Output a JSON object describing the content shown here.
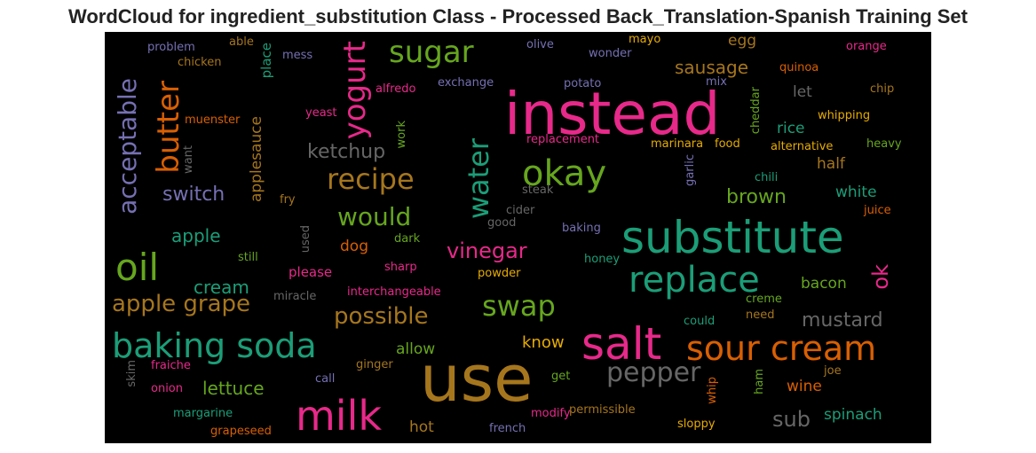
{
  "title": "WordCloud for ingredient_substitution Class - Processed Back_Translation-Spanish Training Set",
  "colors": {
    "teal": "#1b9e77",
    "orange": "#d95f02",
    "purple": "#7570b3",
    "magenta": "#e7298a",
    "green": "#66a61e",
    "yellow": "#e6ab02",
    "brown": "#a6761d",
    "gray": "#666666"
  },
  "words": {
    "instead": "instead",
    "use": "use",
    "substitute": "substitute",
    "salt": "salt",
    "milk": "milk",
    "baking_soda": "baking soda",
    "sour_cream": "sour cream",
    "replace": "replace",
    "oil": "oil",
    "okay": "okay",
    "sugar": "sugar",
    "butter": "butter",
    "yogurt": "yogurt",
    "recipe": "recipe",
    "water": "water",
    "acceptable": "acceptable",
    "would": "would",
    "swap": "swap",
    "apple_grape": "apple grape",
    "possible": "possible",
    "vinegar": "vinegar",
    "pepper": "pepper",
    "ketchup": "ketchup",
    "sausage": "sausage",
    "mustard": "mustard",
    "switch": "switch",
    "lettuce": "lettuce",
    "brown": "brown",
    "sub": "sub",
    "cream": "cream",
    "apple": "apple",
    "applesauce": "applesauce",
    "ok": "ok",
    "egg": "egg",
    "rice": "rice",
    "half": "half",
    "white": "white",
    "bacon": "bacon",
    "know": "know",
    "allow": "allow",
    "wine": "wine",
    "spinach": "spinach",
    "hot": "hot",
    "let": "let",
    "dog": "dog",
    "please": "please",
    "chili": "chili",
    "juice": "juice",
    "alternative": "alternative",
    "whipping": "whipping",
    "heavy": "heavy",
    "marinara": "marinara",
    "food": "food",
    "replacement": "replacement",
    "steak": "steak",
    "cider": "cider",
    "baking": "baking",
    "honey": "honey",
    "powder": "powder",
    "interchangeable": "interchangeable",
    "miracle": "miracle",
    "sharp": "sharp",
    "dark": "dark",
    "still": "still",
    "used": "used",
    "fry": "fry",
    "good": "good",
    "garlic": "garlic",
    "cheddar": "cheddar",
    "mix": "mix",
    "potato": "potato",
    "exchange": "exchange",
    "alfredo": "alfredo",
    "yeast": "yeast",
    "muenster": "muenster",
    "want": "want",
    "work": "work",
    "place": "place",
    "problem": "problem",
    "chicken": "chicken",
    "able": "able",
    "mess": "mess",
    "olive": "olive",
    "wonder": "wonder",
    "mayo": "mayo",
    "quinoa": "quinoa",
    "orange": "orange",
    "chip": "chip",
    "creme": "creme",
    "need": "need",
    "could": "could",
    "joe": "joe",
    "ham": "ham",
    "whip": "whip",
    "get": "get",
    "ginger": "ginger",
    "call": "call",
    "fraiche": "fraiche",
    "onion": "onion",
    "skim": "skim",
    "margarine": "margarine",
    "grapeseed": "grapeseed",
    "modify": "modify",
    "french": "french",
    "permissible": "permissible",
    "sloppy": "sloppy"
  }
}
